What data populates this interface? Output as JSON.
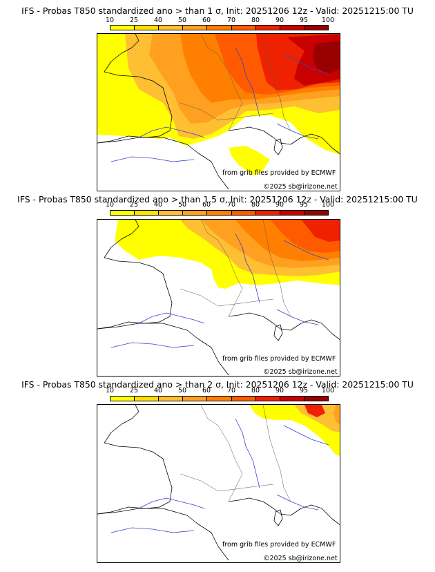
{
  "palette": [
    "#ffff00",
    "#ffe000",
    "#ffbf33",
    "#ffa020",
    "#ff8000",
    "#ff5a00",
    "#ee2200",
    "#c80000",
    "#9a0000",
    "#6e0000"
  ],
  "scale_labels": [
    "10",
    "25",
    "40",
    "50",
    "60",
    "70",
    "80",
    "90",
    "95",
    "100"
  ],
  "credits": {
    "grib": "from grib files provided by ECMWF",
    "copyright": "©2025 sb@irizone.net"
  },
  "panels": [
    {
      "title": "IFS - Probas T850  standardized ano > than 1 σ, Init: 20251206 12z - Valid: 20251215:00 TU",
      "threshold": "1 σ"
    },
    {
      "title": "IFS - Probas T850  standardized ano > than 1.5 σ, Init: 20251206 12z - Valid: 20251215:00 TU",
      "threshold": "1.5 σ"
    },
    {
      "title": "IFS - Probas T850  standardized ano > than 2 σ, Init: 20251206 12z - Valid: 20251215:00 TU",
      "threshold": "2 σ"
    }
  ]
}
